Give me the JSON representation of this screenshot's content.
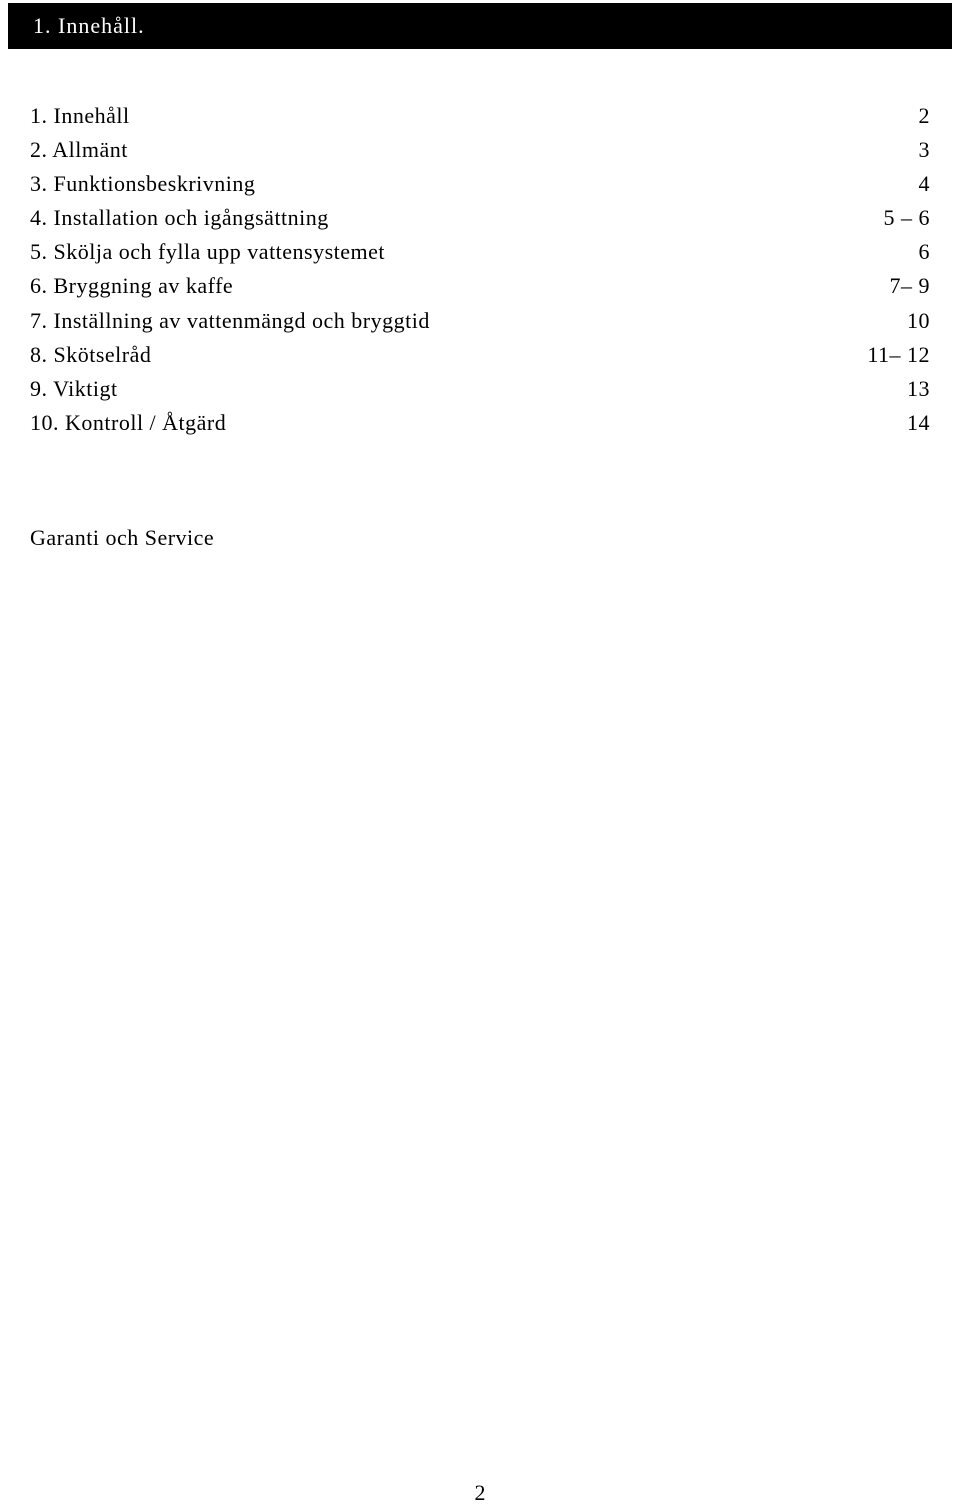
{
  "header": {
    "title": "1. Innehåll."
  },
  "toc": {
    "items": [
      {
        "label": "1. Innehåll",
        "page": "2"
      },
      {
        "label": "2. Allmänt",
        "page": "3"
      },
      {
        "label": "3. Funktionsbeskrivning",
        "page": "4"
      },
      {
        "label": "4. Installation och igångsättning",
        "page": "5 – 6"
      },
      {
        "label": "5. Skölja och fylla upp vattensystemet",
        "page": "6"
      },
      {
        "label": "6. Bryggning av  kaffe",
        "page": "7– 9"
      },
      {
        "label": "7. Inställning av vattenmängd och bryggtid",
        "page": "10"
      },
      {
        "label": "8. Skötselråd",
        "page": "11– 12"
      },
      {
        "label": "9. Viktigt",
        "page": "13"
      },
      {
        "label": "10. Kontroll / Åtgärd",
        "page": "14"
      }
    ]
  },
  "footer": {
    "text": "Garanti och Service"
  },
  "pageNumber": "2",
  "colors": {
    "headerBg": "#000000",
    "headerText": "#ffffff",
    "bodyBg": "#ffffff",
    "bodyText": "#000000"
  }
}
